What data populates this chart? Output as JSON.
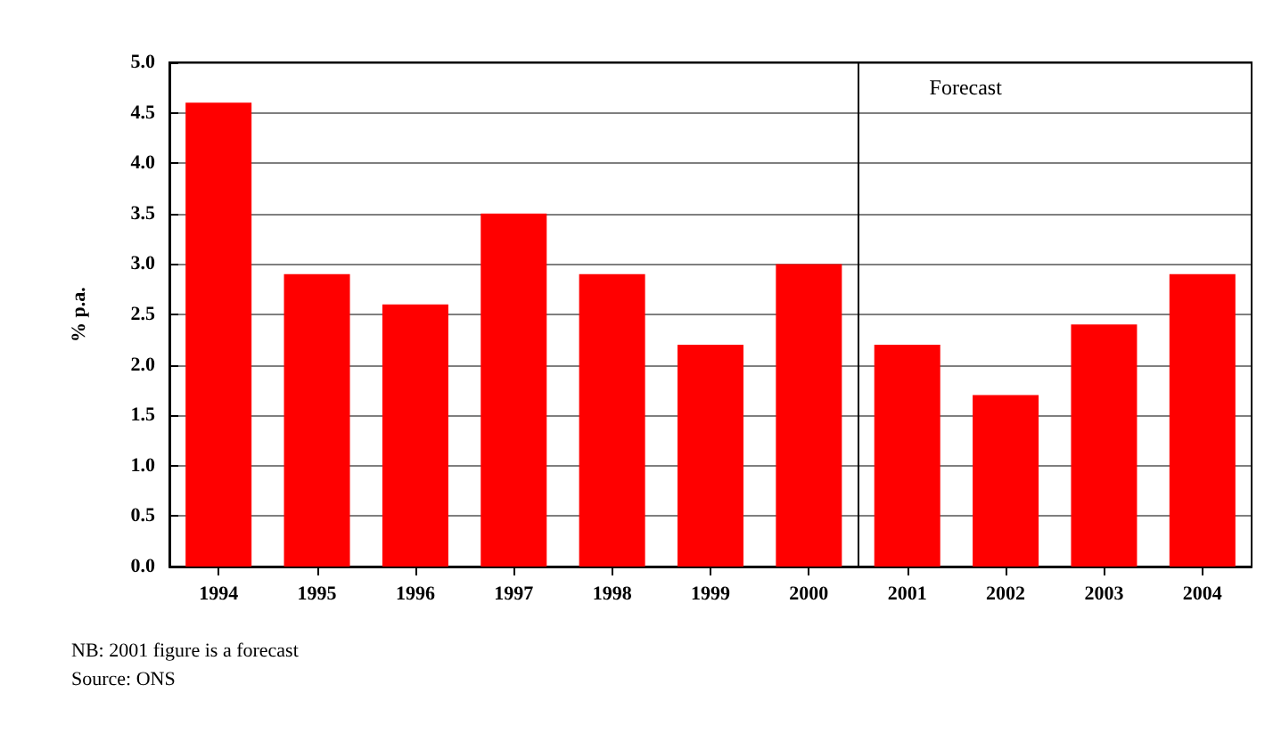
{
  "chart_data": {
    "type": "bar",
    "ylabel": "% p.a.",
    "x": [
      1994,
      1995,
      1996,
      1997,
      1998,
      1999,
      2000,
      2001,
      2002,
      2003,
      2004
    ],
    "values": [
      4.6,
      2.9,
      2.6,
      3.5,
      2.9,
      2.2,
      3.0,
      2.2,
      1.7,
      2.4,
      2.9
    ],
    "color": "#ff0000",
    "xlim": [
      1993.5,
      2004.5
    ],
    "xticks": [
      1994,
      1995,
      1996,
      1997,
      1998,
      1999,
      2000,
      2001,
      2002,
      2003,
      2004
    ],
    "ylim": [
      0,
      5
    ],
    "yticks": [
      {
        "value": 0,
        "label": "0.0"
      },
      {
        "value": 0.5,
        "label": "0.5"
      },
      {
        "value": 1,
        "label": "1.0"
      },
      {
        "value": 1.5,
        "label": "1.5"
      },
      {
        "value": 2,
        "label": "2.0"
      },
      {
        "value": 2.5,
        "label": "2.5"
      },
      {
        "value": 3,
        "label": "3.0"
      },
      {
        "value": 3.5,
        "label": "3.5"
      },
      {
        "value": 4,
        "label": "4.0"
      },
      {
        "value": 4.5,
        "label": "4.5"
      },
      {
        "value": 5,
        "label": "5.0"
      }
    ],
    "grid": "y",
    "ref_lines": [
      {
        "axis": "x",
        "value": 2000.5,
        "label": "Forecast",
        "color": "#000000"
      }
    ],
    "annotations": [
      "NB: 2001 figure is a forecast",
      "Source: ONS"
    ]
  }
}
